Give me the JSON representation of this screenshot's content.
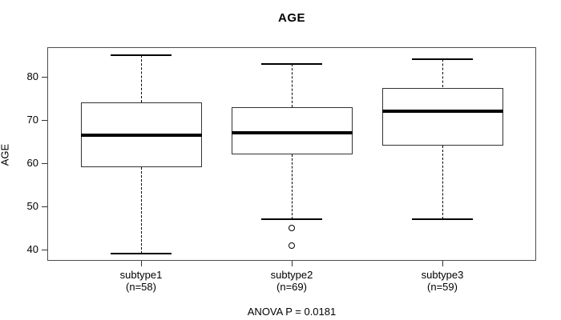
{
  "chart_data": {
    "type": "boxplot",
    "title": "AGE",
    "ylabel": "AGE",
    "xlabel": "",
    "annotation": "ANOVA P = 0.0181",
    "yticks": [
      40,
      50,
      60,
      70,
      80
    ],
    "ylim": [
      37.2,
      86.8
    ],
    "grid": false,
    "groups": [
      {
        "label": "subtype1",
        "n_label": "(n=58)",
        "n": 58,
        "whisker_low": 39,
        "q1": 59,
        "median": 66.5,
        "q3": 74,
        "whisker_high": 85,
        "outliers": []
      },
      {
        "label": "subtype2",
        "n_label": "(n=69)",
        "n": 69,
        "whisker_low": 47,
        "q1": 62,
        "median": 67,
        "q3": 73,
        "whisker_high": 83,
        "outliers": [
          45,
          41
        ]
      },
      {
        "label": "subtype3",
        "n_label": "(n=59)",
        "n": 59,
        "whisker_low": 47,
        "q1": 64,
        "median": 72,
        "q3": 77.5,
        "whisker_high": 84,
        "outliers": []
      }
    ]
  },
  "colors": {
    "line": "#000000",
    "frame": "#4d4d4d",
    "background": "#ffffff"
  }
}
